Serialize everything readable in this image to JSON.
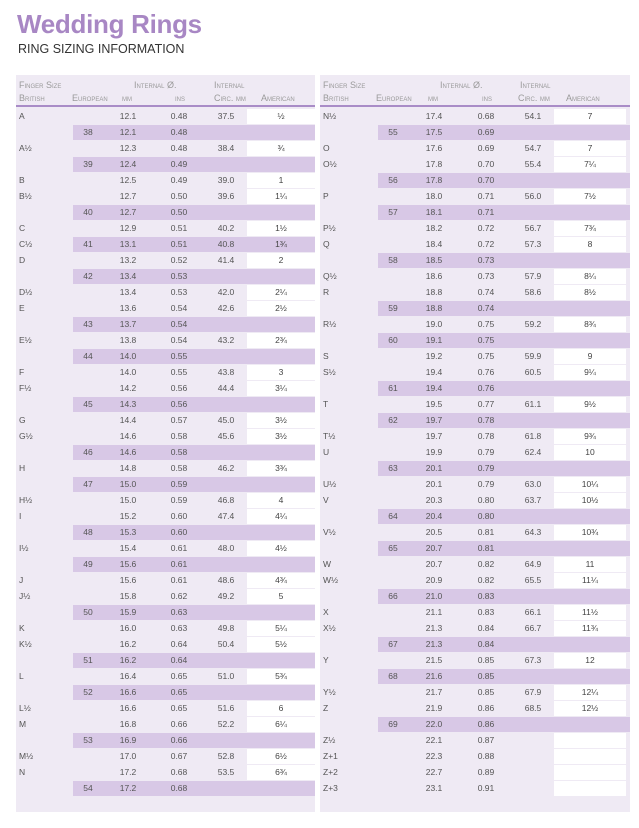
{
  "header": {
    "title": "Wedding Rings",
    "subtitle": "RING SIZING INFORMATION"
  },
  "colors": {
    "title": "#a887c4",
    "band": "#d8c8e6",
    "table_bg": "#efeaf4",
    "rule": "#a98cc7"
  },
  "table_headers": {
    "finger_size": "Finger Size",
    "internal_diameter": "Internal Ø.",
    "internal": "Internal",
    "british": "British",
    "european": "European",
    "mm": "mm",
    "ins": "ins",
    "circ_mm": "Circ. mm",
    "american": "American"
  },
  "tables": [
    {
      "rows": [
        [
          "A",
          "",
          "12.1",
          "0.48",
          "37.5",
          "½"
        ],
        [
          "",
          "38",
          "12.1",
          "0.48",
          "",
          ""
        ],
        [
          "A½",
          "",
          "12.3",
          "0.48",
          "38.4",
          "¾"
        ],
        [
          "",
          "39",
          "12.4",
          "0.49",
          "",
          ""
        ],
        [
          "B",
          "",
          "12.5",
          "0.49",
          "39.0",
          "1"
        ],
        [
          "B½",
          "",
          "12.7",
          "0.50",
          "39.6",
          "1¼"
        ],
        [
          "",
          "40",
          "12.7",
          "0.50",
          "",
          ""
        ],
        [
          "C",
          "",
          "12.9",
          "0.51",
          "40.2",
          "1½"
        ],
        [
          "C½",
          "41",
          "13.1",
          "0.51",
          "40.8",
          "1¾"
        ],
        [
          "D",
          "",
          "13.2",
          "0.52",
          "41.4",
          "2"
        ],
        [
          "",
          "42",
          "13.4",
          "0.53",
          "",
          ""
        ],
        [
          "D½",
          "",
          "13.4",
          "0.53",
          "42.0",
          "2¼"
        ],
        [
          "E",
          "",
          "13.6",
          "0.54",
          "42.6",
          "2½"
        ],
        [
          "",
          "43",
          "13.7",
          "0.54",
          "",
          ""
        ],
        [
          "E½",
          "",
          "13.8",
          "0.54",
          "43.2",
          "2¾"
        ],
        [
          "",
          "44",
          "14.0",
          "0.55",
          "",
          ""
        ],
        [
          "F",
          "",
          "14.0",
          "0.55",
          "43.8",
          "3"
        ],
        [
          "F½",
          "",
          "14.2",
          "0.56",
          "44.4",
          "3¼"
        ],
        [
          "",
          "45",
          "14.3",
          "0.56",
          "",
          ""
        ],
        [
          "G",
          "",
          "14.4",
          "0.57",
          "45.0",
          "3½"
        ],
        [
          "G½",
          "",
          "14.6",
          "0.58",
          "45.6",
          "3½"
        ],
        [
          "",
          "46",
          "14.6",
          "0.58",
          "",
          ""
        ],
        [
          "H",
          "",
          "14.8",
          "0.58",
          "46.2",
          "3¾"
        ],
        [
          "",
          "47",
          "15.0",
          "0.59",
          "",
          ""
        ],
        [
          "H½",
          "",
          "15.0",
          "0.59",
          "46.8",
          "4"
        ],
        [
          "I",
          "",
          "15.2",
          "0.60",
          "47.4",
          "4¼"
        ],
        [
          "",
          "48",
          "15.3",
          "0.60",
          "",
          ""
        ],
        [
          "I½",
          "",
          "15.4",
          "0.61",
          "48.0",
          "4½"
        ],
        [
          "",
          "49",
          "15.6",
          "0.61",
          "",
          ""
        ],
        [
          "J",
          "",
          "15.6",
          "0.61",
          "48.6",
          "4¾"
        ],
        [
          "J½",
          "",
          "15.8",
          "0.62",
          "49.2",
          "5"
        ],
        [
          "",
          "50",
          "15.9",
          "0.63",
          "",
          ""
        ],
        [
          "K",
          "",
          "16.0",
          "0.63",
          "49.8",
          "5¼"
        ],
        [
          "K½",
          "",
          "16.2",
          "0.64",
          "50.4",
          "5½"
        ],
        [
          "",
          "51",
          "16.2",
          "0.64",
          "",
          ""
        ],
        [
          "L",
          "",
          "16.4",
          "0.65",
          "51.0",
          "5¾"
        ],
        [
          "",
          "52",
          "16.6",
          "0.65",
          "",
          ""
        ],
        [
          "L½",
          "",
          "16.6",
          "0.65",
          "51.6",
          "6"
        ],
        [
          "M",
          "",
          "16.8",
          "0.66",
          "52.2",
          "6¼"
        ],
        [
          "",
          "53",
          "16.9",
          "0.66",
          "",
          ""
        ],
        [
          "M½",
          "",
          "17.0",
          "0.67",
          "52.8",
          "6½"
        ],
        [
          "N",
          "",
          "17.2",
          "0.68",
          "53.5",
          "6¾"
        ],
        [
          "",
          "54",
          "17.2",
          "0.68",
          "",
          ""
        ]
      ]
    },
    {
      "rows": [
        [
          "N½",
          "",
          "17.4",
          "0.68",
          "54.1",
          "7"
        ],
        [
          "",
          "55",
          "17.5",
          "0.69",
          "",
          ""
        ],
        [
          "O",
          "",
          "17.6",
          "0.69",
          "54.7",
          "7"
        ],
        [
          "O½",
          "",
          "17.8",
          "0.70",
          "55.4",
          "7¼"
        ],
        [
          "",
          "56",
          "17.8",
          "0.70",
          "",
          ""
        ],
        [
          "P",
          "",
          "18.0",
          "0.71",
          "56.0",
          "7½"
        ],
        [
          "",
          "57",
          "18.1",
          "0.71",
          "",
          ""
        ],
        [
          "P½",
          "",
          "18.2",
          "0.72",
          "56.7",
          "7¾"
        ],
        [
          "Q",
          "",
          "18.4",
          "0.72",
          "57.3",
          "8"
        ],
        [
          "",
          "58",
          "18.5",
          "0.73",
          "",
          ""
        ],
        [
          "Q½",
          "",
          "18.6",
          "0.73",
          "57.9",
          "8¼"
        ],
        [
          "R",
          "",
          "18.8",
          "0.74",
          "58.6",
          "8½"
        ],
        [
          "",
          "59",
          "18.8",
          "0.74",
          "",
          ""
        ],
        [
          "R½",
          "",
          "19.0",
          "0.75",
          "59.2",
          "8¾"
        ],
        [
          "",
          "60",
          "19.1",
          "0.75",
          "",
          ""
        ],
        [
          "S",
          "",
          "19.2",
          "0.75",
          "59.9",
          "9"
        ],
        [
          "S½",
          "",
          "19.4",
          "0.76",
          "60.5",
          "9¼"
        ],
        [
          "",
          "61",
          "19.4",
          "0.76",
          "",
          ""
        ],
        [
          "T",
          "",
          "19.5",
          "0.77",
          "61.1",
          "9½"
        ],
        [
          "",
          "62",
          "19.7",
          "0.78",
          "",
          ""
        ],
        [
          "T½",
          "",
          "19.7",
          "0.78",
          "61.8",
          "9¾"
        ],
        [
          "U",
          "",
          "19.9",
          "0.79",
          "62.4",
          "10"
        ],
        [
          "",
          "63",
          "20.1",
          "0.79",
          "",
          ""
        ],
        [
          "U½",
          "",
          "20.1",
          "0.79",
          "63.0",
          "10¼"
        ],
        [
          "V",
          "",
          "20.3",
          "0.80",
          "63.7",
          "10½"
        ],
        [
          "",
          "64",
          "20.4",
          "0.80",
          "",
          ""
        ],
        [
          "V½",
          "",
          "20.5",
          "0.81",
          "64.3",
          "10¾"
        ],
        [
          "",
          "65",
          "20.7",
          "0.81",
          "",
          ""
        ],
        [
          "W",
          "",
          "20.7",
          "0.82",
          "64.9",
          "11"
        ],
        [
          "W½",
          "",
          "20.9",
          "0.82",
          "65.5",
          "11¼"
        ],
        [
          "",
          "66",
          "21.0",
          "0.83",
          "",
          ""
        ],
        [
          "X",
          "",
          "21.1",
          "0.83",
          "66.1",
          "11½"
        ],
        [
          "X½",
          "",
          "21.3",
          "0.84",
          "66.7",
          "11¾"
        ],
        [
          "",
          "67",
          "21.3",
          "0.84",
          "",
          ""
        ],
        [
          "Y",
          "",
          "21.5",
          "0.85",
          "67.3",
          "12"
        ],
        [
          "",
          "68",
          "21.6",
          "0.85",
          "",
          ""
        ],
        [
          "Y½",
          "",
          "21.7",
          "0.85",
          "67.9",
          "12¼"
        ],
        [
          "Z",
          "",
          "21.9",
          "0.86",
          "68.5",
          "12½"
        ],
        [
          "",
          "69",
          "22.0",
          "0.86",
          "",
          ""
        ],
        [
          "Z½",
          "",
          "22.1",
          "0.87",
          "",
          ""
        ],
        [
          "Z+1",
          "",
          "22.3",
          "0.88",
          "",
          ""
        ],
        [
          "Z+2",
          "",
          "22.7",
          "0.89",
          "",
          ""
        ],
        [
          "Z+3",
          "",
          "23.1",
          "0.91",
          "",
          ""
        ]
      ]
    }
  ]
}
